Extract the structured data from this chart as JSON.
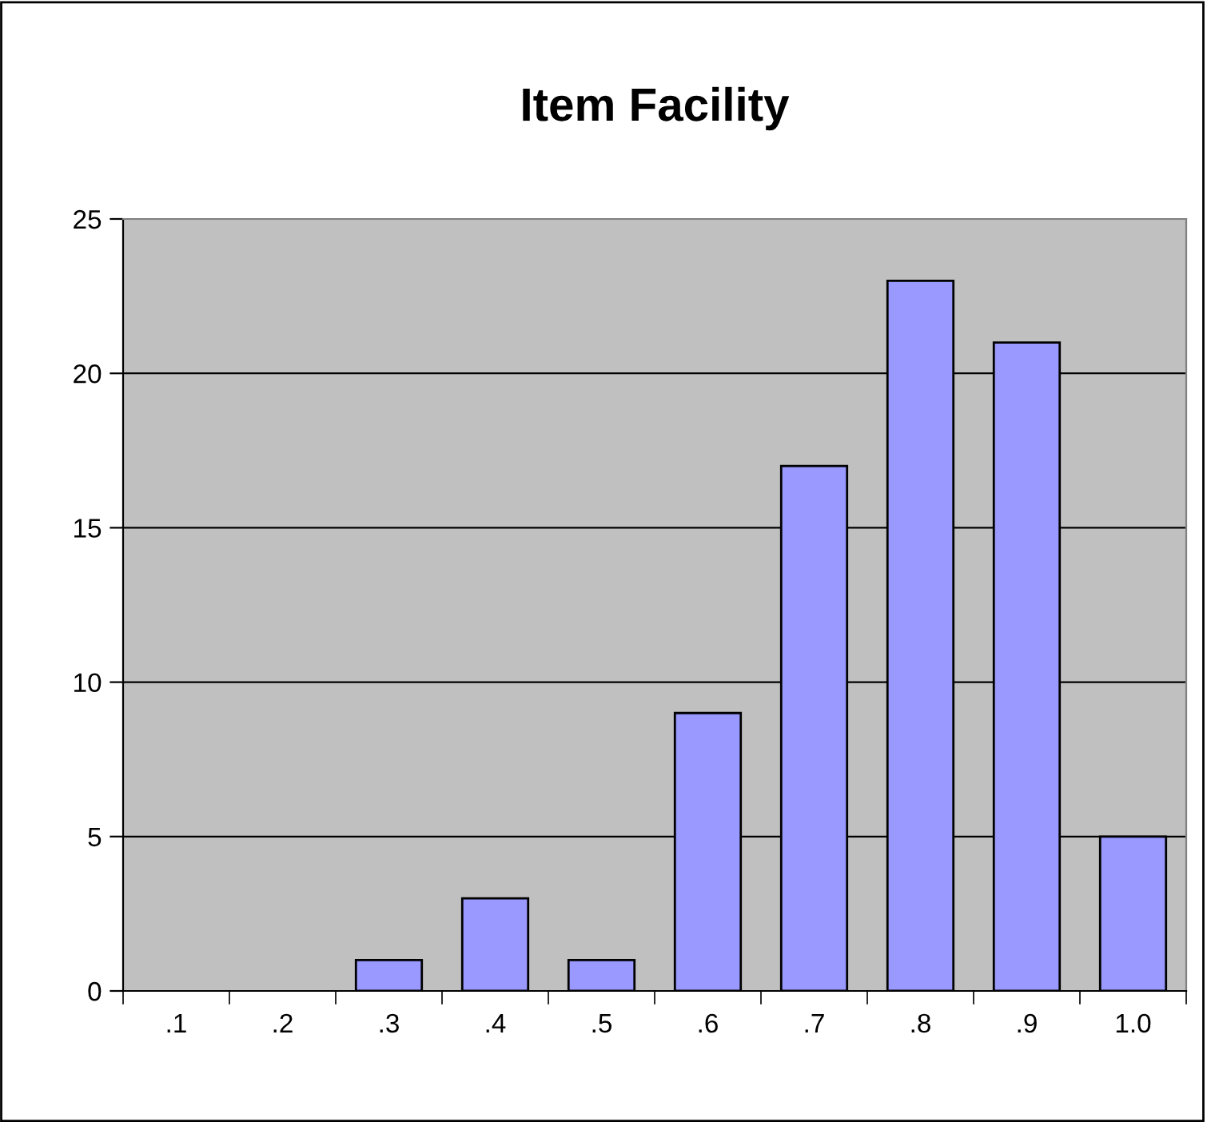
{
  "chart_data": {
    "type": "bar",
    "title": "Item Facility",
    "categories": [
      ".1",
      ".2",
      ".3",
      ".4",
      ".5",
      ".6",
      ".7",
      ".8",
      ".9",
      "1.0"
    ],
    "values": [
      0,
      0,
      1,
      3,
      1,
      9,
      17,
      23,
      21,
      5
    ],
    "color": "#9999ff",
    "ylim": [
      0,
      25
    ],
    "yticks": [
      0,
      5,
      10,
      15,
      20,
      25
    ],
    "grid": "y",
    "legend": false
  }
}
